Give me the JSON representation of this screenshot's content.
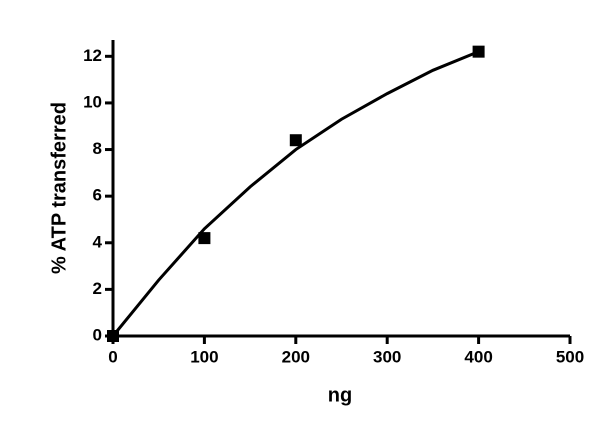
{
  "chart_data": {
    "type": "scatter",
    "xlabel": "ng",
    "ylabel": "% ATP transferred",
    "xlim": [
      0,
      500
    ],
    "xticks": [
      0,
      100,
      200,
      300,
      400,
      500
    ],
    "ylim": [
      0,
      12.7
    ],
    "yticks": [
      0,
      2,
      4,
      6,
      8,
      10,
      12
    ],
    "series": [
      {
        "type": "scatter",
        "marker": "square",
        "color": "#000000",
        "x": [
          0,
          100,
          200,
          400
        ],
        "values": [
          0,
          4.2,
          8.4,
          12.2
        ]
      },
      {
        "type": "line",
        "color": "#000000",
        "x": [
          0,
          50,
          100,
          150,
          200,
          250,
          300,
          350,
          400
        ],
        "values": [
          0,
          2.4,
          4.6,
          6.4,
          8.0,
          9.3,
          10.4,
          11.4,
          12.2
        ]
      }
    ]
  }
}
